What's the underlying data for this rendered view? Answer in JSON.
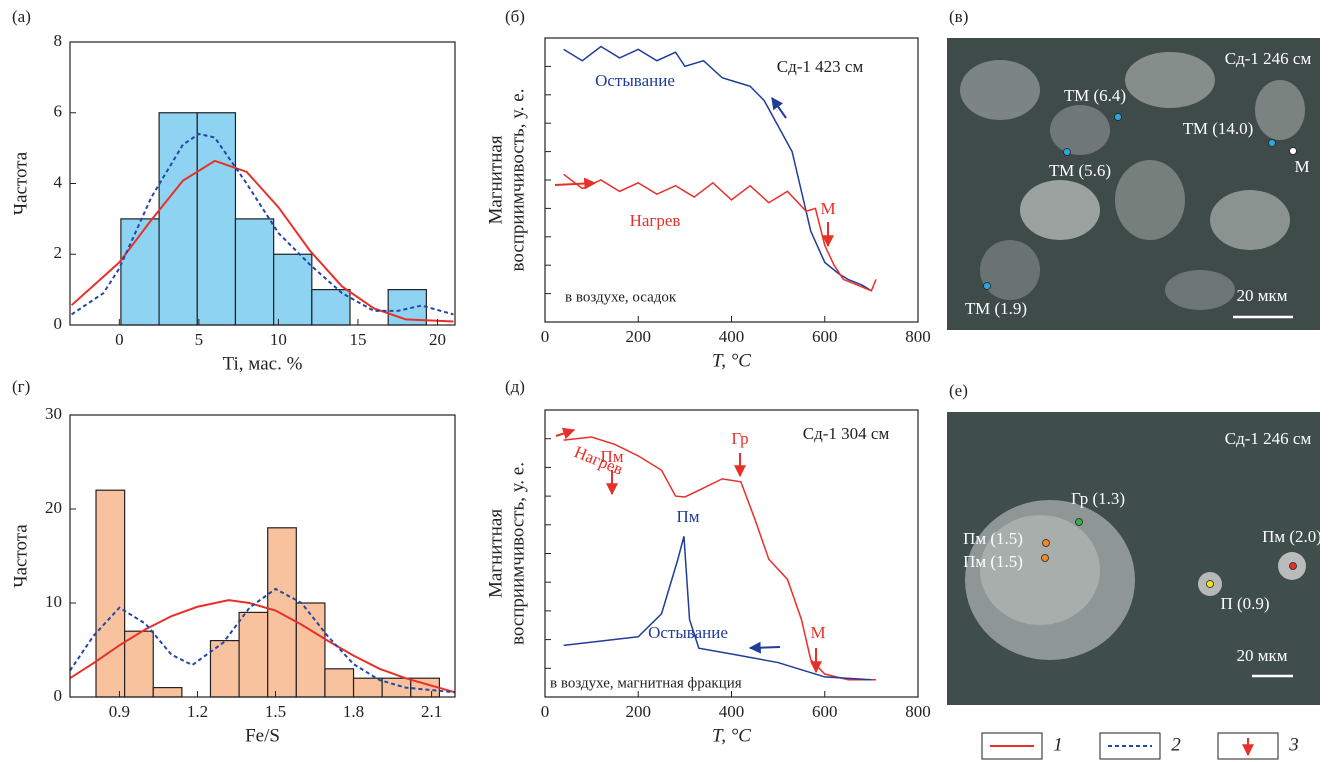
{
  "chart_data": [
    {
      "type": "histogram",
      "panel_label": "(а)",
      "xlabel": "Ti, мас. %",
      "ylabel": "Частота",
      "bins": [
        0.1,
        2.5,
        4.9,
        7.3,
        9.7,
        12.1,
        14.5,
        16.9,
        19.3
      ],
      "values": [
        3,
        6,
        6,
        3,
        2,
        1,
        0,
        1
      ],
      "color": "#8fd3f2",
      "xlim": [
        -3.1,
        21.1
      ],
      "xticks": [
        0,
        5,
        10,
        15,
        20
      ],
      "ylim": [
        0,
        8
      ],
      "yticks": [
        0,
        2,
        4,
        6,
        8
      ],
      "ytick_labels": true,
      "curves": [
        {
          "color": "#e8302a",
          "dash": false,
          "x": [
            -3,
            0,
            2,
            4,
            6,
            8,
            10,
            12,
            14,
            16,
            18,
            21
          ],
          "values": [
            0.56,
            1.77,
            2.96,
            4.08,
            4.64,
            4.33,
            3.33,
            2.09,
            1.09,
            0.47,
            0.16,
            0.1
          ]
        },
        {
          "color": "#2447a8",
          "dash": true,
          "x": [
            -3,
            -1,
            0,
            2,
            4,
            5,
            6,
            8,
            10,
            12,
            14,
            16,
            17.5,
            19,
            21
          ],
          "values": [
            0.3,
            0.9,
            1.6,
            3.6,
            5.1,
            5.4,
            5.3,
            4.0,
            2.6,
            1.7,
            0.9,
            0.4,
            0.4,
            0.55,
            0.3
          ]
        }
      ]
    },
    {
      "type": "line",
      "panel_label": "(б)",
      "xlabel": "T, °C",
      "ylabel": [
        "Магнитная",
        "восприимчивость, у. е."
      ],
      "xlim": [
        0,
        800
      ],
      "xticks": [
        0,
        200,
        400,
        600,
        800
      ],
      "ylim": [
        0,
        10
      ],
      "yticks": [
        1,
        2,
        3,
        4,
        5,
        6,
        7,
        8,
        9
      ],
      "ytick_labels": false,
      "series": [
        {
          "name": "Остывание",
          "color": "#1f3d99",
          "x": [
            40,
            80,
            120,
            160,
            200,
            240,
            280,
            300,
            340,
            380,
            400,
            440,
            470,
            500,
            530,
            550,
            570,
            600,
            630,
            650,
            680,
            700
          ],
          "values": [
            9.6,
            9.2,
            9.7,
            9.3,
            9.6,
            9.2,
            9.5,
            9.0,
            9.2,
            8.6,
            8.5,
            8.3,
            7.8,
            6.9,
            6.0,
            4.6,
            3.2,
            2.1,
            1.7,
            1.5,
            1.3,
            1.1
          ]
        },
        {
          "name": "Нагрев",
          "color": "#e8302a",
          "x": [
            40,
            80,
            120,
            160,
            200,
            240,
            280,
            320,
            360,
            400,
            440,
            480,
            520,
            560,
            580,
            600,
            620,
            640,
            670,
            700,
            710
          ],
          "values": [
            5.2,
            4.7,
            5.0,
            4.6,
            4.9,
            4.5,
            4.8,
            4.4,
            4.9,
            4.3,
            4.8,
            4.2,
            4.6,
            3.9,
            4.0,
            2.7,
            2.0,
            1.5,
            1.3,
            1.1,
            1.5
          ]
        }
      ],
      "annotations": [
        {
          "text": "Сд-1 423 см",
          "color": "#222"
        },
        {
          "text": "М",
          "color": "#e8302a"
        },
        {
          "text": "в воздухе, осадок",
          "color": "#222"
        }
      ]
    },
    {
      "type": "histogram",
      "panel_label": "(г)",
      "xlabel": "Fe/S",
      "ylabel": "Частота",
      "bins": [
        0.81,
        0.92,
        1.03,
        1.14,
        1.25,
        1.36,
        1.47,
        1.58,
        1.69,
        1.8,
        1.91,
        2.02,
        2.13
      ],
      "values": [
        22,
        7,
        1,
        0,
        6,
        9,
        18,
        10,
        3,
        2,
        2,
        2
      ],
      "color": "#f8c29e",
      "xlim": [
        0.71,
        2.19
      ],
      "xticks": [
        0.9,
        1.2,
        1.5,
        1.8,
        2.1
      ],
      "ylim": [
        0,
        30
      ],
      "yticks": [
        0,
        10,
        20,
        30
      ],
      "ytick_labels": true,
      "curves": [
        {
          "color": "#e8302a",
          "dash": false,
          "x": [
            0.71,
            0.8,
            0.9,
            1.0,
            1.1,
            1.2,
            1.32,
            1.4,
            1.5,
            1.6,
            1.7,
            1.8,
            1.9,
            2.0,
            2.1,
            2.19
          ],
          "values": [
            2.0,
            3.6,
            5.5,
            7.2,
            8.6,
            9.6,
            10.3,
            10.0,
            9.2,
            7.7,
            6.0,
            4.4,
            3.0,
            2.0,
            1.2,
            0.5
          ]
        },
        {
          "color": "#2447a8",
          "dash": true,
          "x": [
            0.71,
            0.8,
            0.9,
            1.0,
            1.1,
            1.18,
            1.3,
            1.4,
            1.5,
            1.6,
            1.7,
            1.8,
            1.9,
            2.0,
            2.19
          ],
          "values": [
            2.8,
            6.5,
            9.5,
            7.8,
            4.5,
            3.4,
            5.8,
            9.5,
            11.5,
            10.0,
            6.5,
            3.5,
            1.8,
            1.0,
            0.5
          ]
        }
      ]
    },
    {
      "type": "line",
      "panel_label": "(д)",
      "xlabel": "T, °C",
      "ylabel": [
        "Магнитная",
        "восприимчивость, у. е."
      ],
      "xlim": [
        0,
        800
      ],
      "xticks": [
        0,
        200,
        400,
        600,
        800
      ],
      "ylim": [
        0,
        10
      ],
      "yticks": [
        1,
        2,
        3,
        4,
        5,
        6,
        7,
        8,
        9
      ],
      "ytick_labels": false,
      "series": [
        {
          "name": "Нагрев",
          "color": "#e8302a",
          "x": [
            40,
            100,
            150,
            200,
            250,
            280,
            300,
            330,
            380,
            420,
            450,
            480,
            520,
            550,
            570,
            600,
            650,
            710
          ],
          "values": [
            8.95,
            9.06,
            8.8,
            8.4,
            7.9,
            7.0,
            6.97,
            7.2,
            7.6,
            7.5,
            6.2,
            4.8,
            4.1,
            2.7,
            1.3,
            0.8,
            0.6,
            0.6
          ]
        },
        {
          "name": "Остывание",
          "color": "#1f3d99",
          "x": [
            40,
            200,
            250,
            285,
            298,
            310,
            330,
            400,
            500,
            560,
            600,
            700
          ],
          "values": [
            1.8,
            2.1,
            2.9,
            4.8,
            5.6,
            2.7,
            1.7,
            1.5,
            1.2,
            0.9,
            0.7,
            0.6
          ]
        }
      ],
      "annotations": [
        {
          "text": "Сд-1 304 см",
          "color": "#222"
        },
        {
          "text": "Пм",
          "color": "#e8302a"
        },
        {
          "text": "Гр",
          "color": "#e8302a"
        },
        {
          "text": "Пм",
          "color": "#1f3d99"
        },
        {
          "text": "М",
          "color": "#e8302a"
        },
        {
          "text": "в воздухе, магнитная фракция",
          "color": "#222"
        }
      ]
    }
  ],
  "images": [
    {
      "panel_label": "(в)",
      "sample": "Сд-1 246 см",
      "scale": "20 мкм",
      "points": [
        {
          "label": "ТМ (6.4)",
          "color": "#2aa6e0"
        },
        {
          "label": "ТМ (14.0)",
          "color": "#2aa6e0"
        },
        {
          "label": "ТМ (5.6)",
          "color": "#2aa6e0"
        },
        {
          "label": "М",
          "color": "#ffffff"
        },
        {
          "label": "ТМ (1.9)",
          "color": "#2aa6e0"
        }
      ]
    },
    {
      "panel_label": "(е)",
      "sample": "Сд-1 246 см",
      "scale": "20 мкм",
      "points": [
        {
          "label": "Гр (1.3)",
          "color": "#35b04a"
        },
        {
          "label": "Пм (1.5)",
          "color": "#f08a24"
        },
        {
          "label": "Пм (1.5)",
          "color": "#f08a24"
        },
        {
          "label": "Пм (2.0)",
          "color": "#e8302a"
        },
        {
          "label": "П (0.9)",
          "color": "#f2e21c"
        }
      ]
    }
  ],
  "legend": {
    "items": [
      "1",
      "2",
      "3"
    ]
  }
}
